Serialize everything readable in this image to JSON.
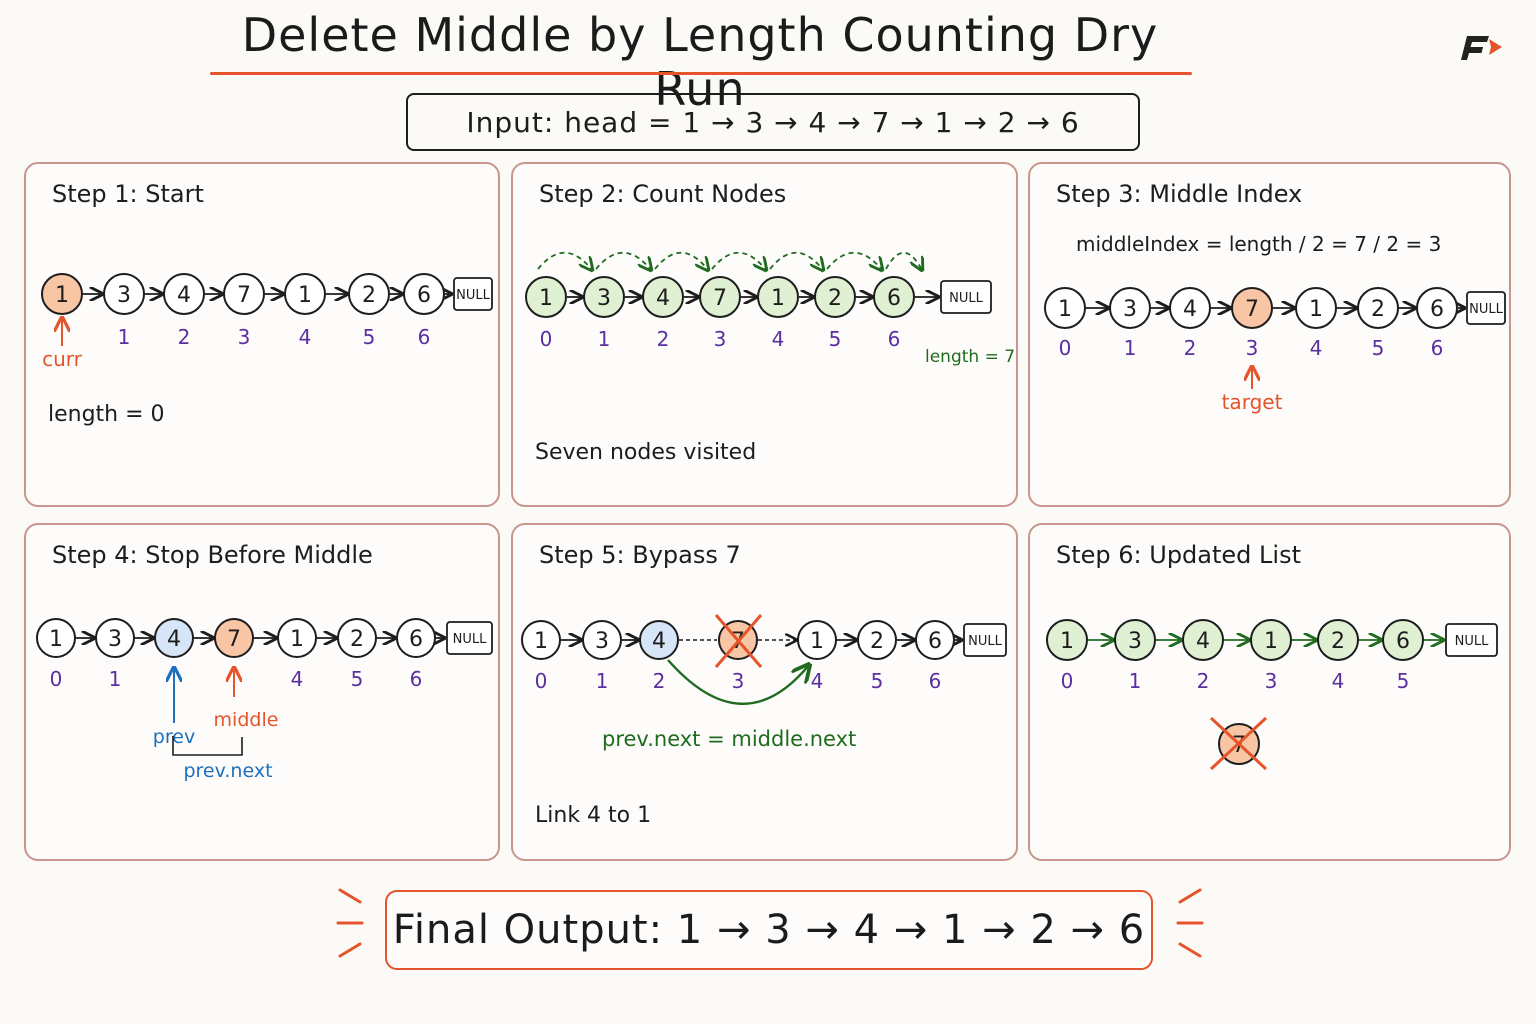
{
  "title": "Delete Middle by Length Counting Dry Run",
  "input_label": "Input: head = 1 → 3 → 4 → 7 → 1 → 2 → 6",
  "null_label": "NULL",
  "colors": {
    "accent": "#e5542b",
    "highlight_fill": "#f9c6a5",
    "visited_fill": "#dff0d3",
    "prev_fill": "#d6e6f8",
    "index_purple": "#5b2fa0",
    "green": "#1f6b1f",
    "blue": "#1f6fbf",
    "border": "#c9958c"
  },
  "panels": {
    "step1": {
      "title": "Step 1: Start",
      "nodes": [
        "1",
        "3",
        "4",
        "7",
        "1",
        "2",
        "6"
      ],
      "indices": [
        "",
        "1",
        "2",
        "3",
        "4",
        "5",
        "6"
      ],
      "pointer_label": "curr",
      "note": "length = 0"
    },
    "step2": {
      "title": "Step 2: Count Nodes",
      "nodes": [
        "1",
        "3",
        "4",
        "7",
        "1",
        "2",
        "6"
      ],
      "indices": [
        "0",
        "1",
        "2",
        "3",
        "4",
        "5",
        "6"
      ],
      "length_label": "length = 7",
      "note": "Seven nodes visited"
    },
    "step3": {
      "title": "Step 3: Middle Index",
      "formula": "middleIndex = length / 2 = 7 / 2 = 3",
      "nodes": [
        "1",
        "3",
        "4",
        "7",
        "1",
        "2",
        "6"
      ],
      "indices": [
        "0",
        "1",
        "2",
        "3",
        "4",
        "5",
        "6"
      ],
      "pointer_label": "target"
    },
    "step4": {
      "title": "Step 4: Stop Before Middle",
      "nodes": [
        "1",
        "3",
        "4",
        "7",
        "1",
        "2",
        "6"
      ],
      "indices": [
        "0",
        "1",
        "",
        "",
        "4",
        "5",
        "6"
      ],
      "prev_label": "prev",
      "middle_label": "middle",
      "prev_next_label": "prev.next"
    },
    "step5": {
      "title": "Step 5: Bypass 7",
      "nodes": [
        "1",
        "3",
        "4",
        "7",
        "1",
        "2",
        "6"
      ],
      "indices": [
        "0",
        "1",
        "2",
        "3",
        "4",
        "5",
        "6"
      ],
      "code": "prev.next = middle.next",
      "note": "Link 4 to 1"
    },
    "step6": {
      "title": "Step 6: Updated List",
      "nodes": [
        "1",
        "3",
        "4",
        "1",
        "2",
        "6"
      ],
      "indices": [
        "0",
        "1",
        "2",
        "3",
        "4",
        "5"
      ],
      "removed_node": "7"
    }
  },
  "final_output": "Final Output: 1 → 3 → 4 → 1 → 2 → 6"
}
